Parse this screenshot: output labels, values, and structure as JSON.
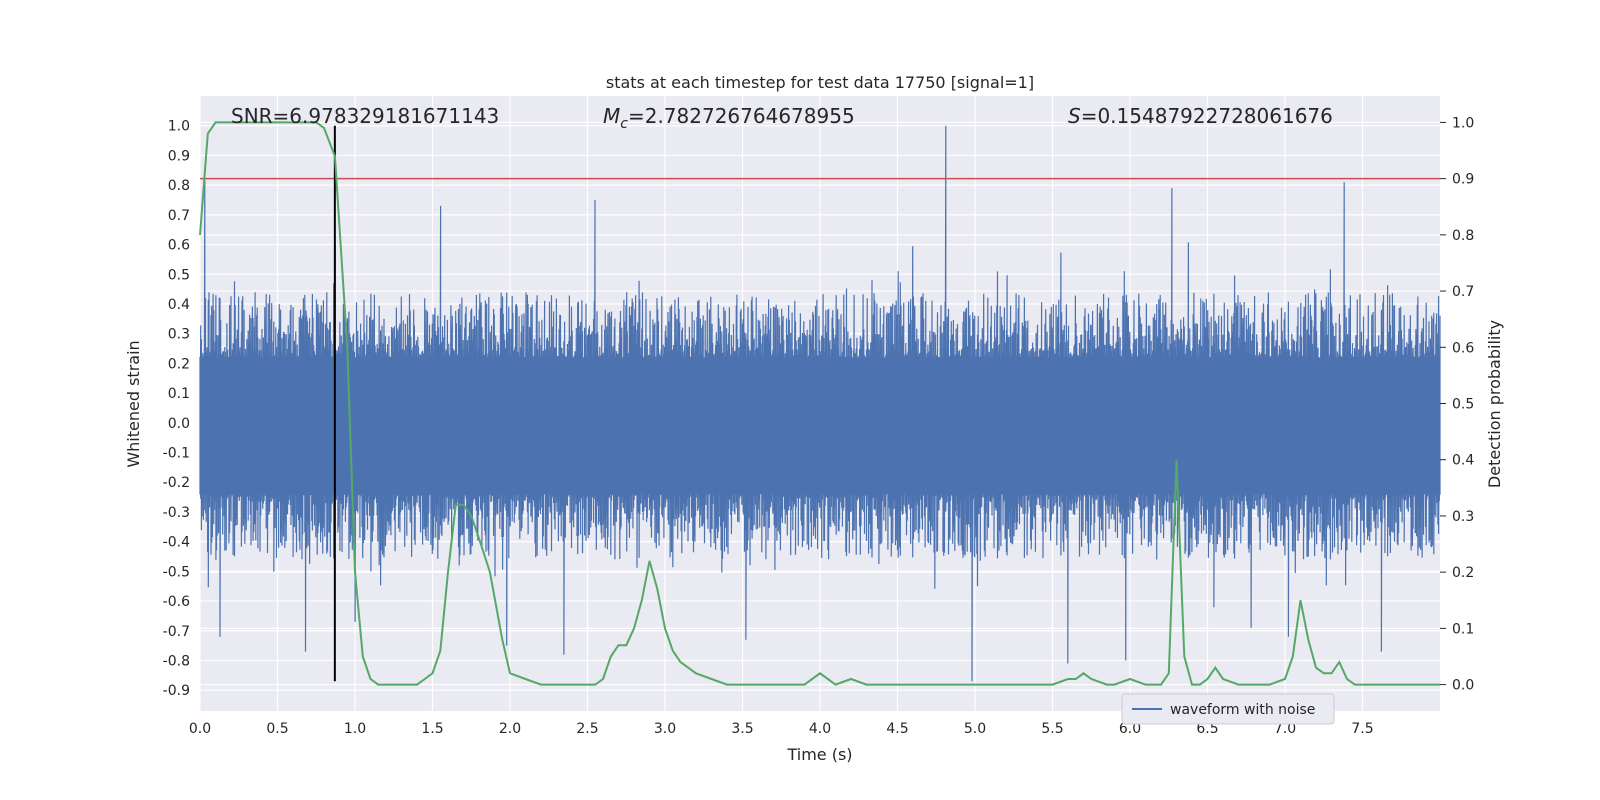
{
  "chart_data": {
    "type": "line",
    "title": "stats at each timestep for test data 17750 [signal=1]",
    "xlabel": "Time (s)",
    "ylabel": "Whitened strain",
    "y2label": "Detection probability",
    "xlim": [
      0.0,
      8.0
    ],
    "ylim": [
      -0.97,
      1.1
    ],
    "y2lim": [
      -0.047,
      1.047
    ],
    "x_ticks": [
      0.0,
      0.5,
      1.0,
      1.5,
      2.0,
      2.5,
      3.0,
      3.5,
      4.0,
      4.5,
      5.0,
      5.5,
      6.0,
      6.5,
      7.0,
      7.5
    ],
    "y_ticks": [
      1.0,
      0.9,
      0.8,
      0.7,
      0.6,
      0.5,
      0.4,
      0.3,
      0.2,
      0.1,
      0.0,
      -0.1,
      -0.2,
      -0.3,
      -0.4,
      -0.5,
      -0.6,
      -0.7,
      -0.8,
      -0.9
    ],
    "y2_ticks": [
      1.0,
      0.9,
      0.8,
      0.7,
      0.6,
      0.5,
      0.4,
      0.3,
      0.2,
      0.1,
      0.0
    ],
    "grid": true,
    "legend_position": "lower-right",
    "colors": {
      "waveform": "#4c72b0",
      "probability": "#55a868",
      "threshold": "#c44e52",
      "event_marker": "#000000",
      "plot_background": "#eaeaf2",
      "grid": "#ffffff"
    },
    "annotations": [
      {
        "label": "SNR=6.978329181671143",
        "x_frac_axis": 0.025
      },
      {
        "label_html": "M_c=2.782726764678955",
        "x_frac_axis": 0.325
      },
      {
        "label": "S=0.15487922728061676",
        "x_frac_axis": 0.7
      }
    ],
    "annotation_text": {
      "snr": "SNR=6.978329181671143",
      "mc_symbol": "M",
      "mc_sub": "c",
      "mc_value": "=2.782726764678955",
      "s_symbol": "S",
      "s_value": "=0.15487922728061676"
    },
    "event_time": 0.87,
    "threshold_probability": 0.9,
    "series": [
      {
        "name": "waveform with noise",
        "axis": "left",
        "envelope_top": [
          [
            0.0,
            0.45
          ],
          [
            0.5,
            0.45
          ],
          [
            1.0,
            0.45
          ],
          [
            1.5,
            0.45
          ],
          [
            2.0,
            0.45
          ],
          [
            2.5,
            0.45
          ],
          [
            3.0,
            0.45
          ],
          [
            3.5,
            0.45
          ],
          [
            4.0,
            0.45
          ],
          [
            4.5,
            0.45
          ],
          [
            5.0,
            0.45
          ],
          [
            5.5,
            0.45
          ],
          [
            6.0,
            0.45
          ],
          [
            6.5,
            0.45
          ],
          [
            7.0,
            0.45
          ],
          [
            7.5,
            0.45
          ],
          [
            8.0,
            0.45
          ]
        ],
        "notable_peaks": [
          [
            0.03,
            0.82
          ],
          [
            0.87,
            0.6
          ],
          [
            1.55,
            0.73
          ],
          [
            2.55,
            0.75
          ],
          [
            4.81,
            1.0
          ],
          [
            6.27,
            0.79
          ],
          [
            7.38,
            0.81
          ],
          [
            4.98,
            -0.87
          ],
          [
            5.6,
            -0.81
          ],
          [
            5.97,
            -0.8
          ],
          [
            2.35,
            -0.78
          ],
          [
            0.68,
            -0.77
          ],
          [
            7.62,
            -0.77
          ],
          [
            0.13,
            -0.72
          ],
          [
            1.0,
            -0.67
          ],
          [
            1.98,
            -0.75
          ],
          [
            3.52,
            -0.73
          ],
          [
            7.02,
            -0.72
          ],
          [
            6.78,
            -0.69
          ]
        ]
      },
      {
        "name": "detection probability",
        "axis": "right",
        "x": [
          0.0,
          0.05,
          0.1,
          0.15,
          0.2,
          0.3,
          0.4,
          0.5,
          0.6,
          0.7,
          0.75,
          0.8,
          0.87,
          0.95,
          1.0,
          1.05,
          1.1,
          1.15,
          1.2,
          1.3,
          1.4,
          1.45,
          1.5,
          1.55,
          1.6,
          1.65,
          1.7,
          1.75,
          1.8,
          1.87,
          1.95,
          2.0,
          2.1,
          2.2,
          2.3,
          2.4,
          2.5,
          2.55,
          2.6,
          2.65,
          2.7,
          2.75,
          2.8,
          2.85,
          2.9,
          2.95,
          3.0,
          3.05,
          3.1,
          3.2,
          3.3,
          3.4,
          3.5,
          3.6,
          3.7,
          3.8,
          3.9,
          4.0,
          4.1,
          4.2,
          4.3,
          4.4,
          4.5,
          4.6,
          4.7,
          4.8,
          4.9,
          5.0,
          5.1,
          5.2,
          5.3,
          5.4,
          5.5,
          5.6,
          5.65,
          5.7,
          5.75,
          5.85,
          5.9,
          6.0,
          6.1,
          6.2,
          6.25,
          6.3,
          6.35,
          6.4,
          6.45,
          6.5,
          6.55,
          6.6,
          6.7,
          6.8,
          6.9,
          7.0,
          7.05,
          7.1,
          7.15,
          7.2,
          7.25,
          7.3,
          7.35,
          7.4,
          7.45,
          7.5,
          7.6,
          7.7,
          7.8,
          7.9,
          8.0
        ],
        "values": [
          0.8,
          0.98,
          1.0,
          1.0,
          1.0,
          1.0,
          1.0,
          1.0,
          1.0,
          1.0,
          1.0,
          0.99,
          0.94,
          0.6,
          0.2,
          0.05,
          0.01,
          0.0,
          0.0,
          0.0,
          0.0,
          0.01,
          0.02,
          0.06,
          0.2,
          0.32,
          0.32,
          0.3,
          0.26,
          0.2,
          0.08,
          0.02,
          0.01,
          0.0,
          0.0,
          0.0,
          0.0,
          0.0,
          0.01,
          0.05,
          0.07,
          0.07,
          0.1,
          0.15,
          0.22,
          0.17,
          0.1,
          0.06,
          0.04,
          0.02,
          0.01,
          0.0,
          0.0,
          0.0,
          0.0,
          0.0,
          0.0,
          0.02,
          0.0,
          0.01,
          0.0,
          0.0,
          0.0,
          0.0,
          0.0,
          0.0,
          0.0,
          0.0,
          0.0,
          0.0,
          0.0,
          0.0,
          0.0,
          0.01,
          0.01,
          0.02,
          0.01,
          0.0,
          0.0,
          0.01,
          0.0,
          0.0,
          0.02,
          0.4,
          0.05,
          0.0,
          0.0,
          0.01,
          0.03,
          0.01,
          0.0,
          0.0,
          0.0,
          0.01,
          0.05,
          0.15,
          0.08,
          0.03,
          0.02,
          0.02,
          0.04,
          0.01,
          0.0,
          0.0,
          0.0,
          0.0,
          0.0,
          0.0,
          0.0
        ]
      }
    ],
    "legend": [
      {
        "label": "waveform with noise",
        "color": "#4c72b0"
      }
    ]
  }
}
